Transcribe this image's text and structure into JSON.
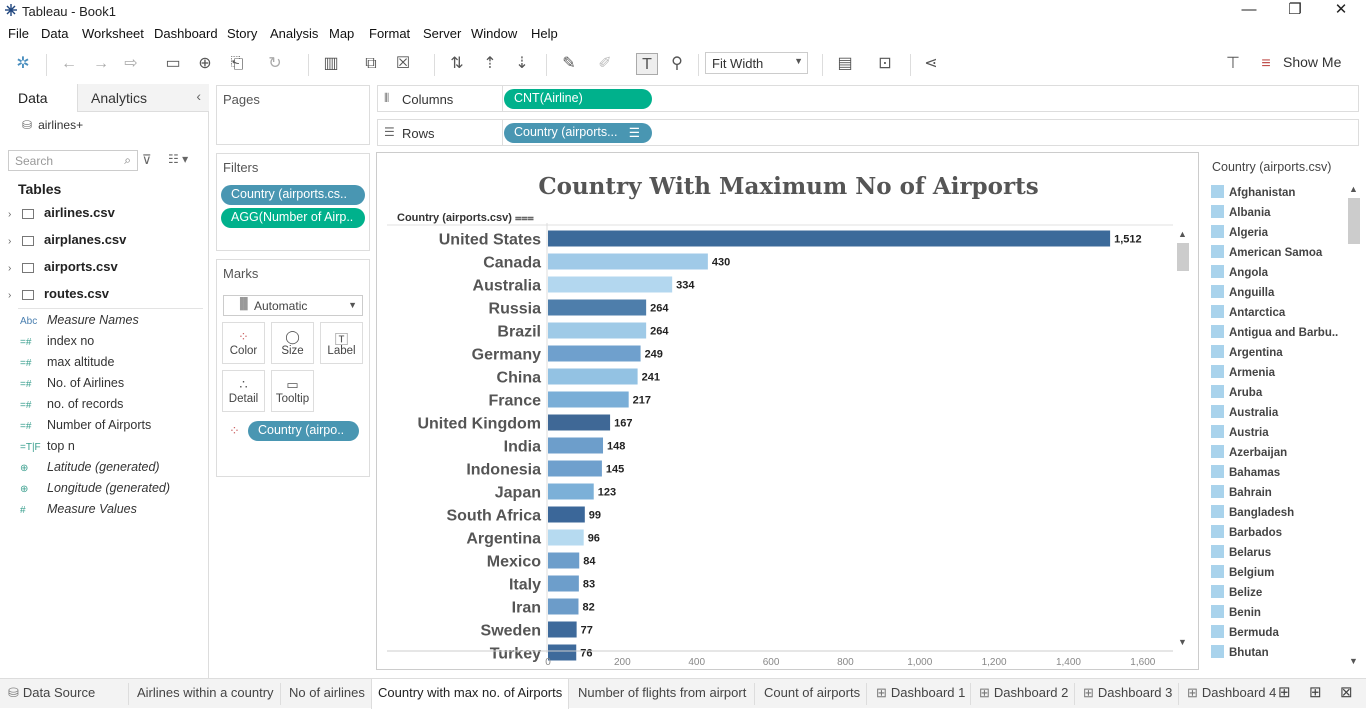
{
  "window": {
    "title": "Tableau - Book1",
    "minimize": "—",
    "restore": "❐",
    "close": "✕"
  },
  "menu": [
    "File",
    "Data",
    "Worksheet",
    "Dashboard",
    "Story",
    "Analysis",
    "Map",
    "Format",
    "Server",
    "Window",
    "Help"
  ],
  "toolbar": {
    "fit": "Fit Width",
    "show_me": "Show Me"
  },
  "left": {
    "tab_data": "Data",
    "tab_analytics": "Analytics",
    "datasource": "airlines+",
    "search_placeholder": "Search",
    "tables_header": "Tables",
    "tables": [
      "airlines.csv",
      "airplanes.csv",
      "airports.csv",
      "routes.csv"
    ],
    "fields": [
      {
        "icon": "Abc",
        "name": "Measure Names",
        "italic": true
      },
      {
        "icon": "=#",
        "name": "index no",
        "italic": false
      },
      {
        "icon": "=#",
        "name": "max altitude",
        "italic": false
      },
      {
        "icon": "=#",
        "name": "No. of Airlines",
        "italic": false
      },
      {
        "icon": "=#",
        "name": "no. of records",
        "italic": false
      },
      {
        "icon": "=#",
        "name": "Number of Airports",
        "italic": false
      },
      {
        "icon": "=T|F",
        "name": "top n",
        "italic": false
      },
      {
        "icon": "⊕",
        "name": "Latitude (generated)",
        "italic": true
      },
      {
        "icon": "⊕",
        "name": "Longitude (generated)",
        "italic": true
      },
      {
        "icon": "#",
        "name": "Measure Values",
        "italic": true
      }
    ]
  },
  "pages": {
    "title": "Pages"
  },
  "filters": {
    "title": "Filters",
    "pills": [
      "Country (airports.cs..",
      "AGG(Number of Airp.."
    ]
  },
  "marks": {
    "title": "Marks",
    "type": "Automatic",
    "buttons": [
      "Color",
      "Size",
      "Label",
      "Detail",
      "Tooltip"
    ],
    "pill": "Country (airpo.."
  },
  "shelves": {
    "columns_label": "Columns",
    "columns_pill": "CNT(Airline)",
    "rows_label": "Rows",
    "rows_pill": "Country (airports..."
  },
  "view": {
    "header": "Country (airports.csv)"
  },
  "chart_data": {
    "type": "bar",
    "title": "Country With Maximum No of Airports",
    "orientation": "horizontal",
    "categories": [
      "United States",
      "Canada",
      "Australia",
      "Russia",
      "Brazil",
      "Germany",
      "China",
      "France",
      "United Kingdom",
      "India",
      "Indonesia",
      "Japan",
      "South Africa",
      "Argentina",
      "Mexico",
      "Italy",
      "Iran",
      "Sweden",
      "Turkey"
    ],
    "values": [
      1512,
      430,
      334,
      264,
      264,
      249,
      241,
      217,
      167,
      148,
      145,
      123,
      99,
      96,
      84,
      83,
      82,
      77,
      76
    ],
    "colors": [
      "#3c6a9a",
      "#a0cae8",
      "#b3d7ef",
      "#4e7eab",
      "#9fcae7",
      "#6fa0cd",
      "#93c2e3",
      "#7aaed7",
      "#3f6896",
      "#6d9ecb",
      "#6fa0cd",
      "#7cb0d8",
      "#3b6799",
      "#b6daf0",
      "#6d9ecb",
      "#6d9ecb",
      "#6c9cc9",
      "#3e6a9b",
      "#3e6a9b"
    ],
    "xmax": 1700
  },
  "legend": {
    "title": "Country (airports.csv)",
    "items": [
      "Afghanistan",
      "Albania",
      "Algeria",
      "American Samoa",
      "Angola",
      "Anguilla",
      "Antarctica",
      "Antigua and Barbu..",
      "Argentina",
      "Armenia",
      "Aruba",
      "Australia",
      "Austria",
      "Azerbaijan",
      "Bahamas",
      "Bahrain",
      "Bangladesh",
      "Barbados",
      "Belarus",
      "Belgium",
      "Belize",
      "Benin",
      "Bermuda",
      "Bhutan"
    ]
  },
  "sheets": [
    "Data Source",
    "Airlines within a country",
    "No of airlines",
    "Country with max no. of Airports",
    "Number of flights from airport",
    "Count of airports",
    "Dashboard 1",
    "Dashboard 2",
    "Dashboard 3",
    "Dashboard 4"
  ]
}
